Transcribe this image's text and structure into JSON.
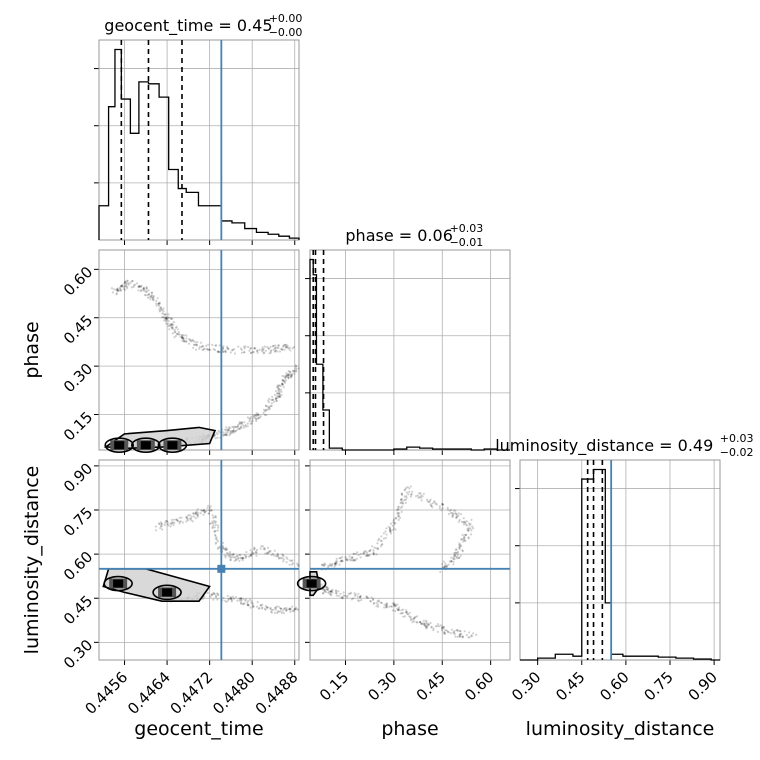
{
  "chart_data": {
    "type": "corner",
    "truth_color": "#4682b4",
    "parameters": [
      {
        "name": "geocent_time",
        "label": "geocent_time",
        "title": "geocent_time = 0.45",
        "title_plus": "+0.00",
        "title_minus": "−0.00",
        "range": [
          0.44512,
          0.44888
        ],
        "ticks": [
          0.4456,
          0.4464,
          0.4472,
          0.448,
          0.4488
        ],
        "tick_labels": [
          "0.4456",
          "0.4464",
          "0.4472",
          "0.4480",
          "0.4488"
        ],
        "truth": 0.44742,
        "quantiles": [
          0.44554,
          0.44605,
          0.44668
        ],
        "hist_edges": [
          0.44512,
          0.4453,
          0.44542,
          0.44554,
          0.44571,
          0.44587,
          0.44605,
          0.44625,
          0.44643,
          0.44661,
          0.44676,
          0.44699,
          0.4472,
          0.44742,
          0.44762,
          0.44786,
          0.44808,
          0.4483,
          0.4485,
          0.4487,
          0.44888
        ],
        "hist_values": [
          0.18,
          0.7,
          1.0,
          0.74,
          0.56,
          0.83,
          0.82,
          0.75,
          0.37,
          0.27,
          0.25,
          0.18,
          0.18,
          0.1,
          0.09,
          0.06,
          0.04,
          0.03,
          0.02,
          0.01
        ]
      },
      {
        "name": "phase",
        "label": "phase",
        "title": "phase = 0.06",
        "title_plus": "+0.03",
        "title_minus": "−0.01",
        "range": [
          0.04,
          0.66
        ],
        "ticks": [
          0.15,
          0.3,
          0.45,
          0.6
        ],
        "tick_labels": [
          "0.15",
          "0.30",
          "0.45",
          "0.60"
        ],
        "truth": null,
        "quantiles": [
          0.05,
          0.057,
          0.082
        ],
        "hist_edges": [
          0.04,
          0.05,
          0.06,
          0.08,
          0.1,
          0.14,
          0.18,
          0.22,
          0.26,
          0.3,
          0.34,
          0.38,
          0.42,
          0.46,
          0.5,
          0.54,
          0.58,
          0.62,
          0.66
        ],
        "hist_values": [
          1.0,
          0.92,
          0.45,
          0.21,
          0.01,
          0.0,
          0.0,
          0.0,
          0.0,
          0.005,
          0.015,
          0.01,
          0.005,
          0.005,
          0.005,
          0.0,
          0.005,
          0.0
        ]
      },
      {
        "name": "luminosity_distance",
        "label": "luminosity_distance",
        "title": "luminosity_distance = 0.49",
        "title_plus": "+0.03",
        "title_minus": "−0.02",
        "range": [
          0.24,
          0.92
        ],
        "ticks": [
          0.3,
          0.45,
          0.6,
          0.75,
          0.9
        ],
        "tick_labels": [
          "0.30",
          "0.45",
          "0.60",
          "0.75",
          "0.90"
        ],
        "truth": 0.55,
        "quantiles": [
          0.47,
          0.49,
          0.52
        ],
        "hist_edges": [
          0.24,
          0.3,
          0.36,
          0.42,
          0.45,
          0.49,
          0.53,
          0.55,
          0.59,
          0.65,
          0.71,
          0.77,
          0.83,
          0.89,
          0.92
        ],
        "hist_values": [
          0.0,
          0.01,
          0.03,
          0.02,
          0.95,
          1.0,
          0.3,
          0.03,
          0.02,
          0.02,
          0.015,
          0.01,
          0.005,
          0.0
        ]
      }
    ],
    "contour_2d": [
      {
        "x": "geocent_time",
        "y": "phase",
        "samples_path": [
          [
            0.44888,
            0.3
          ],
          [
            0.4486,
            0.26
          ],
          [
            0.44845,
            0.2
          ],
          [
            0.4481,
            0.14
          ],
          [
            0.4477,
            0.11
          ],
          [
            0.44742,
            0.09
          ],
          [
            0.447,
            0.07
          ],
          [
            0.4464,
            0.06
          ],
          [
            0.4456,
            0.06
          ]
        ],
        "upper_cluster_path": [
          [
            0.4454,
            0.53
          ],
          [
            0.4457,
            0.56
          ],
          [
            0.4461,
            0.52
          ],
          [
            0.4464,
            0.45
          ],
          [
            0.4466,
            0.4
          ],
          [
            0.447,
            0.36
          ],
          [
            0.4476,
            0.35
          ],
          [
            0.4483,
            0.35
          ],
          [
            0.4488,
            0.36
          ]
        ],
        "contour_outer": [
          [
            0.44525,
            0.05
          ],
          [
            0.4456,
            0.09
          ],
          [
            0.4464,
            0.1
          ],
          [
            0.447,
            0.11
          ],
          [
            0.4473,
            0.1
          ],
          [
            0.4472,
            0.06
          ],
          [
            0.4464,
            0.05
          ],
          [
            0.4456,
            0.045
          ]
        ],
        "dense_points": [
          [
            0.4455,
            0.055
          ],
          [
            0.446,
            0.055
          ],
          [
            0.4465,
            0.055
          ]
        ]
      },
      {
        "x": "geocent_time",
        "y": "luminosity_distance",
        "samples_path": [
          [
            0.4465,
            0.45
          ],
          [
            0.4472,
            0.46
          ],
          [
            0.4478,
            0.44
          ],
          [
            0.4484,
            0.41
          ],
          [
            0.44888,
            0.41
          ]
        ],
        "upper_cluster_path": [
          [
            0.4462,
            0.69
          ],
          [
            0.4468,
            0.72
          ],
          [
            0.4472,
            0.76
          ],
          [
            0.4474,
            0.62
          ],
          [
            0.4477,
            0.58
          ],
          [
            0.4482,
            0.62
          ],
          [
            0.44888,
            0.56
          ]
        ],
        "contour_outer": [
          [
            0.4452,
            0.49
          ],
          [
            0.4453,
            0.55
          ],
          [
            0.446,
            0.55
          ],
          [
            0.4466,
            0.52
          ],
          [
            0.4472,
            0.49
          ],
          [
            0.447,
            0.44
          ],
          [
            0.4463,
            0.44
          ],
          [
            0.4456,
            0.47
          ]
        ],
        "dense_points": [
          [
            0.44548,
            0.5
          ],
          [
            0.4464,
            0.47
          ]
        ]
      },
      {
        "x": "phase",
        "y": "luminosity_distance",
        "samples_path": [
          [
            0.06,
            0.5
          ],
          [
            0.1,
            0.47
          ],
          [
            0.2,
            0.45
          ],
          [
            0.3,
            0.42
          ],
          [
            0.38,
            0.37
          ],
          [
            0.45,
            0.34
          ],
          [
            0.55,
            0.32
          ]
        ],
        "upper_cluster_path": [
          [
            0.06,
            0.55
          ],
          [
            0.15,
            0.58
          ],
          [
            0.24,
            0.61
          ],
          [
            0.3,
            0.7
          ],
          [
            0.34,
            0.82
          ],
          [
            0.45,
            0.76
          ],
          [
            0.54,
            0.7
          ],
          [
            0.5,
            0.6
          ],
          [
            0.45,
            0.55
          ]
        ],
        "contour_outer": [
          [
            0.04,
            0.46
          ],
          [
            0.04,
            0.54
          ],
          [
            0.06,
            0.54
          ],
          [
            0.07,
            0.49
          ],
          [
            0.05,
            0.46
          ]
        ],
        "dense_points": [
          [
            0.045,
            0.5
          ]
        ]
      }
    ]
  }
}
